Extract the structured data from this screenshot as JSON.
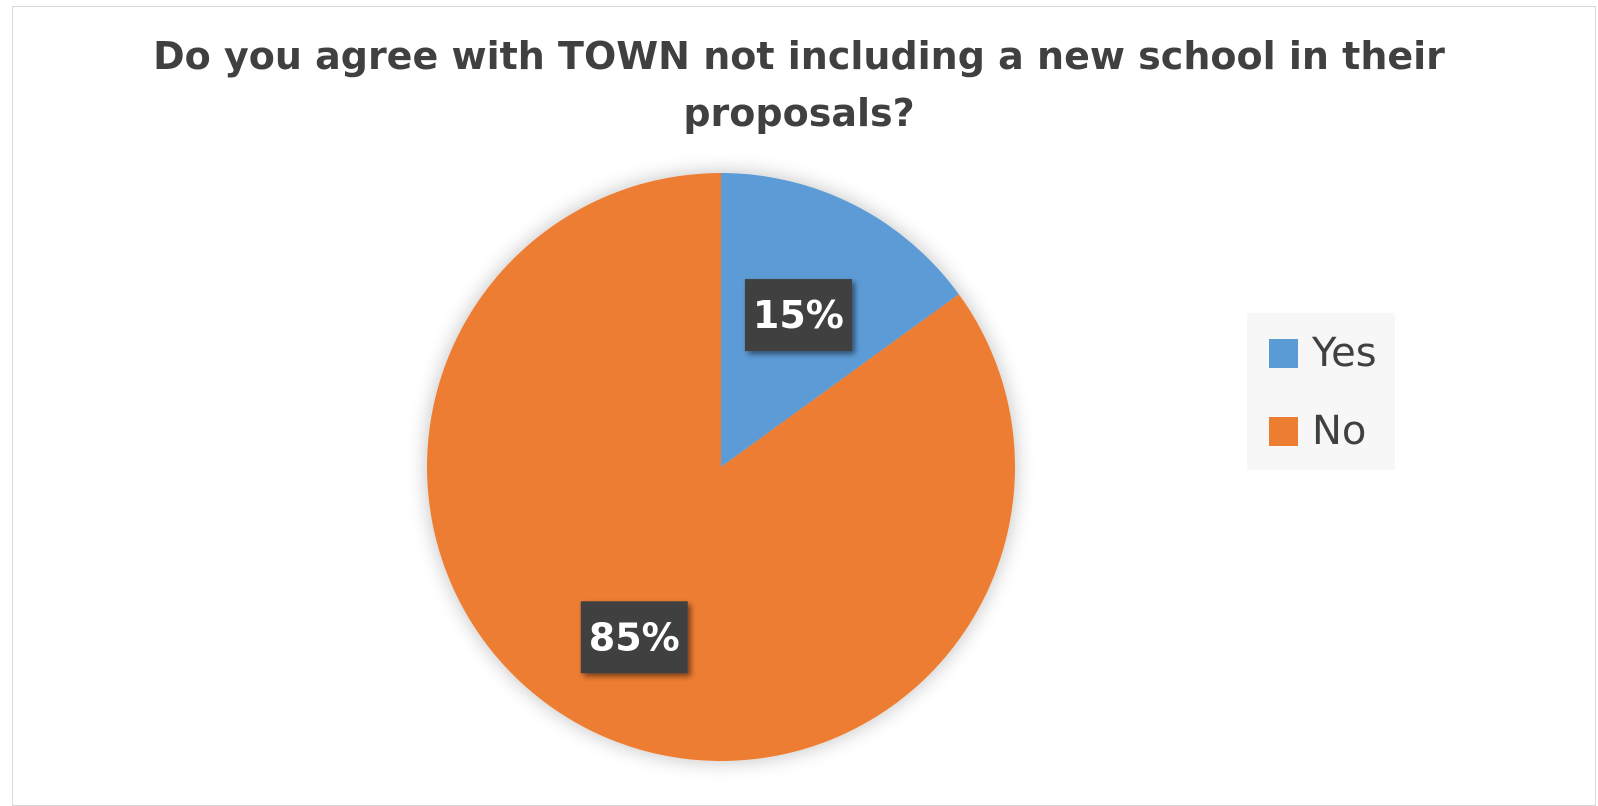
{
  "chart_data": {
    "type": "pie",
    "title": "Do you agree with TOWN not including a new school in their proposals?",
    "title_lines": [
      "Do you agree with TOWN not including a new school in their",
      "proposals?"
    ],
    "slices": [
      {
        "name": "Yes",
        "value": 15,
        "label": "15%",
        "color": "#5b9bd5"
      },
      {
        "name": "No",
        "value": 85,
        "label": "85%",
        "color": "#ed7d31"
      }
    ],
    "legend": {
      "position": "right",
      "entries": [
        "Yes",
        "No"
      ]
    },
    "data_label_background": "#404040"
  }
}
